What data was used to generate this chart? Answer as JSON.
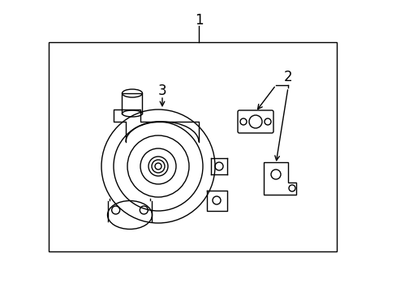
{
  "background_color": "#ffffff",
  "border_color": "#000000",
  "line_color": "#000000",
  "text_color": "#000000",
  "title": "",
  "label_1": "1",
  "label_2": "2",
  "label_3": "3",
  "fig_width": 4.89,
  "fig_height": 3.6,
  "dpi": 100
}
